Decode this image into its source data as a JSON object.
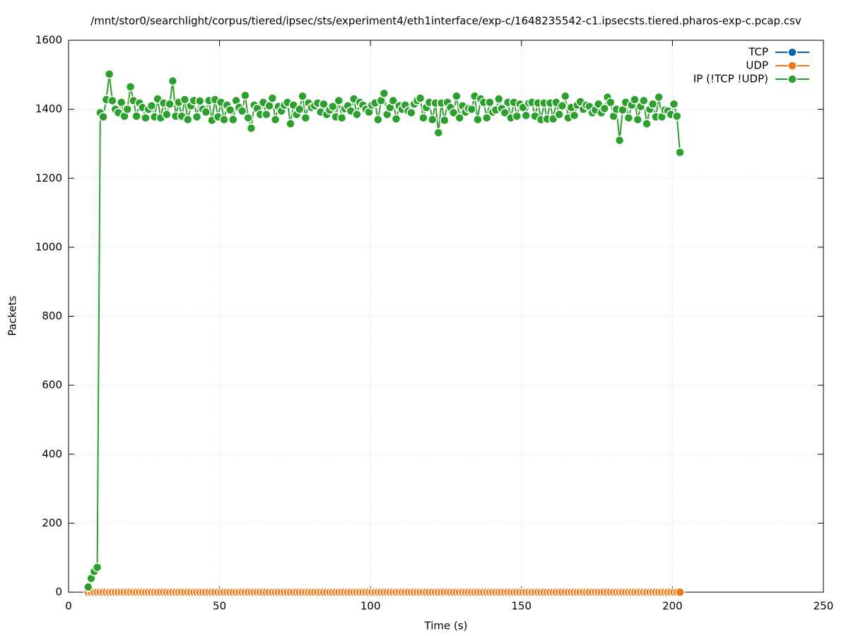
{
  "chart_data": {
    "type": "line",
    "title": "/mnt/stor0/searchlight/corpus/tiered/ipsec/sts/experiment4/eth1interface/exp-c/1648235542-c1.ipsecsts.tiered.pharos-exp-c.pcap.csv",
    "x_label": "Time (s)",
    "y_label": "Packets",
    "xlim": [
      0,
      250
    ],
    "xticks": [
      0,
      50,
      100,
      150,
      200,
      250
    ],
    "ylim": [
      0,
      1600
    ],
    "yticks": [
      0,
      200,
      400,
      600,
      800,
      1000,
      1200,
      1400,
      1600
    ],
    "grid": true,
    "legend": "top-right",
    "x": [
      6.5,
      7.5,
      8.5,
      9.5,
      10.5,
      11.5,
      12.5,
      13.5,
      14.5,
      15.5,
      16.5,
      17.5,
      18.5,
      19.5,
      20.5,
      21.5,
      22.5,
      23.5,
      24.5,
      25.5,
      26.5,
      27.5,
      28.5,
      29.5,
      30.5,
      31.5,
      32.5,
      33.5,
      34.5,
      35.5,
      36.5,
      37.5,
      38.5,
      39.5,
      40.5,
      41.5,
      42.5,
      43.5,
      44.5,
      45.5,
      46.5,
      47.5,
      48.5,
      49.5,
      50.5,
      51.5,
      52.5,
      53.5,
      54.5,
      55.5,
      56.5,
      57.5,
      58.5,
      59.5,
      60.5,
      61.5,
      62.5,
      63.5,
      64.5,
      65.5,
      66.5,
      67.5,
      68.5,
      69.5,
      70.5,
      71.5,
      72.5,
      73.5,
      74.5,
      75.5,
      76.5,
      77.5,
      78.5,
      79.5,
      80.5,
      81.5,
      82.5,
      83.5,
      84.5,
      85.5,
      86.5,
      87.5,
      88.5,
      89.5,
      90.5,
      91.5,
      92.5,
      93.5,
      94.5,
      95.5,
      96.5,
      97.5,
      98.5,
      99.5,
      100.5,
      101.5,
      102.5,
      103.5,
      104.5,
      105.5,
      106.5,
      107.5,
      108.5,
      109.5,
      110.5,
      111.5,
      112.5,
      113.5,
      114.5,
      115.5,
      116.5,
      117.5,
      118.5,
      119.5,
      120.5,
      121.5,
      122.5,
      123.5,
      124.5,
      125.5,
      126.5,
      127.5,
      128.5,
      129.5,
      130.5,
      131.5,
      132.5,
      133.5,
      134.5,
      135.5,
      136.5,
      137.5,
      138.5,
      139.5,
      140.5,
      141.5,
      142.5,
      143.5,
      144.5,
      145.5,
      146.5,
      147.5,
      148.5,
      149.5,
      150.5,
      151.5,
      152.5,
      153.5,
      154.5,
      155.5,
      156.5,
      157.5,
      158.5,
      159.5,
      160.5,
      161.5,
      162.5,
      163.5,
      164.5,
      165.5,
      166.5,
      167.5,
      168.5,
      169.5,
      170.5,
      171.5,
      172.5,
      173.5,
      174.5,
      175.5,
      176.5,
      177.5,
      178.5,
      179.5,
      180.5,
      181.5,
      182.5,
      183.5,
      184.5,
      185.5,
      186.5,
      187.5,
      188.5,
      189.5,
      190.5,
      191.5,
      192.5,
      193.5,
      194.5,
      195.5,
      196.5,
      197.5,
      198.5,
      199.5,
      200.5,
      201.5,
      202.5
    ],
    "series": [
      {
        "name": "TCP",
        "color": "#0a64b4",
        "values": [
          0,
          0,
          0,
          0,
          0,
          0,
          0,
          0,
          0,
          0,
          0,
          0,
          0,
          0,
          0,
          0,
          0,
          0,
          0,
          0,
          0,
          0,
          0,
          0,
          0,
          0,
          0,
          0,
          0,
          0,
          0,
          0,
          0,
          0,
          0,
          0,
          0,
          0,
          0,
          0,
          0,
          0,
          0,
          0,
          0,
          0,
          0,
          0,
          0,
          0,
          0,
          0,
          0,
          0,
          0,
          0,
          0,
          0,
          0,
          0,
          0,
          0,
          0,
          0,
          0,
          0,
          0,
          0,
          0,
          0,
          0,
          0,
          0,
          0,
          0,
          0,
          0,
          0,
          0,
          0,
          0,
          0,
          0,
          0,
          0,
          0,
          0,
          0,
          0,
          0,
          0,
          0,
          0,
          0,
          0,
          0,
          0,
          0,
          0,
          0,
          0,
          0,
          0,
          0,
          0,
          0,
          0,
          0,
          0,
          0,
          0,
          0,
          0,
          0,
          0,
          0,
          0,
          0,
          0,
          0,
          0,
          0,
          0,
          0,
          0,
          0,
          0,
          0,
          0,
          0,
          0,
          0,
          0,
          0,
          0,
          0,
          0,
          0,
          0,
          0,
          0,
          0,
          0,
          0,
          0,
          0,
          0,
          0,
          0,
          0,
          0,
          0,
          0,
          0,
          0,
          0,
          0,
          0,
          0,
          0,
          0,
          0,
          0,
          0,
          0,
          0,
          0,
          0,
          0,
          0,
          0,
          0,
          0,
          0,
          0,
          0,
          0,
          0,
          0,
          0,
          0,
          0,
          0,
          0,
          0,
          0,
          0,
          0,
          0,
          0,
          0,
          0,
          0,
          0,
          0,
          0,
          0
        ]
      },
      {
        "name": "UDP",
        "color": "#f07814",
        "values": [
          0,
          0,
          0,
          0,
          0,
          0,
          0,
          0,
          0,
          0,
          0,
          0,
          0,
          0,
          0,
          0,
          0,
          0,
          0,
          0,
          0,
          0,
          0,
          0,
          0,
          0,
          0,
          0,
          0,
          0,
          0,
          0,
          0,
          0,
          0,
          0,
          0,
          0,
          0,
          0,
          0,
          0,
          0,
          0,
          0,
          0,
          0,
          0,
          0,
          0,
          0,
          0,
          0,
          0,
          0,
          0,
          0,
          0,
          0,
          0,
          0,
          0,
          0,
          0,
          0,
          0,
          0,
          0,
          0,
          0,
          0,
          0,
          0,
          0,
          0,
          0,
          0,
          0,
          0,
          0,
          0,
          0,
          0,
          0,
          0,
          0,
          0,
          0,
          0,
          0,
          0,
          0,
          0,
          0,
          0,
          0,
          0,
          0,
          0,
          0,
          0,
          0,
          0,
          0,
          0,
          0,
          0,
          0,
          0,
          0,
          0,
          0,
          0,
          0,
          0,
          0,
          0,
          0,
          0,
          0,
          0,
          0,
          0,
          0,
          0,
          0,
          0,
          0,
          0,
          0,
          0,
          0,
          0,
          0,
          0,
          0,
          0,
          0,
          0,
          0,
          0,
          0,
          0,
          0,
          0,
          0,
          0,
          0,
          0,
          0,
          0,
          0,
          0,
          0,
          0,
          0,
          0,
          0,
          0,
          0,
          0,
          0,
          0,
          0,
          0,
          0,
          0,
          0,
          0,
          0,
          0,
          0,
          0,
          0,
          0,
          0,
          0,
          0,
          0,
          0,
          0,
          0,
          0,
          0,
          0,
          0,
          0,
          0,
          0,
          0,
          0,
          0,
          0,
          0,
          0,
          0,
          0
        ]
      },
      {
        "name": "IP (!TCP  !UDP)",
        "color": "#2ca02c",
        "values": [
          15,
          40,
          60,
          72,
          1390,
          1378,
          1428,
          1502,
          1425,
          1400,
          1390,
          1420,
          1380,
          1400,
          1465,
          1425,
          1380,
          1418,
          1405,
          1375,
          1400,
          1410,
          1378,
          1430,
          1375,
          1418,
          1385,
          1415,
          1482,
          1380,
          1420,
          1380,
          1428,
          1370,
          1410,
          1425,
          1378,
          1424,
          1400,
          1392,
          1425,
          1368,
          1428,
          1378,
          1420,
          1370,
          1412,
          1398,
          1370,
          1425,
          1405,
          1395,
          1440,
          1375,
          1345,
          1412,
          1402,
          1385,
          1420,
          1385,
          1410,
          1432,
          1370,
          1408,
          1395,
          1412,
          1420,
          1358,
          1412,
          1385,
          1400,
          1438,
          1375,
          1418,
          1405,
          1410,
          1418,
          1392,
          1415,
          1385,
          1398,
          1408,
          1378,
          1425,
          1375,
          1402,
          1410,
          1395,
          1430,
          1385,
          1420,
          1412,
          1400,
          1392,
          1412,
          1418,
          1370,
          1425,
          1446,
          1385,
          1405,
          1425,
          1372,
          1410,
          1400,
          1412,
          1395,
          1390,
          1415,
          1425,
          1432,
          1375,
          1405,
          1420,
          1370,
          1418,
          1332,
          1418,
          1368,
          1420,
          1405,
          1390,
          1438,
          1375,
          1410,
          1392,
          1402,
          1400,
          1438,
          1370,
          1430,
          1420,
          1375,
          1420,
          1392,
          1398,
          1430,
          1402,
          1390,
          1420,
          1375,
          1420,
          1380,
          1415,
          1405,
          1382,
          1418,
          1420,
          1380,
          1418,
          1370,
          1418,
          1372,
          1418,
          1372,
          1420,
          1385,
          1410,
          1438,
          1375,
          1405,
          1382,
          1412,
          1422,
          1400,
          1412,
          1408,
          1390,
          1398,
          1415,
          1390,
          1402,
          1435,
          1420,
          1380,
          1400,
          1310,
          1398,
          1420,
          1375,
          1412,
          1428,
          1370,
          1408,
          1425,
          1358,
          1400,
          1415,
          1378,
          1435,
          1378,
          1398,
          1395,
          1385,
          1415,
          1380,
          1275
        ]
      }
    ]
  }
}
